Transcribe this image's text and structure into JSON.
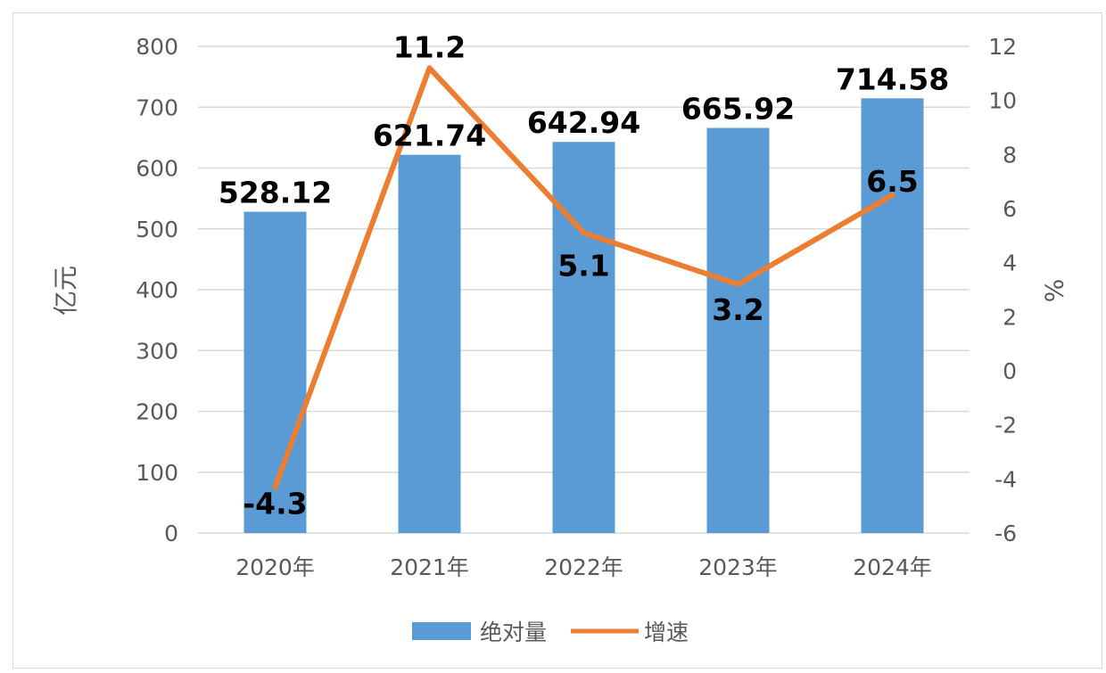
{
  "chart_data": {
    "type": "bar",
    "categories": [
      "2020年",
      "2021年",
      "2022年",
      "2023年",
      "2024年"
    ],
    "series": [
      {
        "name": "绝对量",
        "type": "bar",
        "axis": "left",
        "values": [
          528.12,
          621.74,
          642.94,
          665.92,
          714.58
        ],
        "color": "#5b9bd5"
      },
      {
        "name": "增速",
        "type": "line",
        "axis": "right",
        "values": [
          -4.3,
          11.2,
          5.1,
          3.2,
          6.5
        ],
        "color": "#ed7d31"
      }
    ],
    "left_axis": {
      "label": "亿元",
      "ylim": [
        0,
        800
      ],
      "ticks": [
        "0",
        "100",
        "200",
        "300",
        "400",
        "500",
        "600",
        "700",
        "800"
      ]
    },
    "right_axis": {
      "label": "%",
      "ylim": [
        -6,
        12
      ],
      "ticks": [
        "-6",
        "-4",
        "-2",
        "0",
        "2",
        "4",
        "6",
        "8",
        "10",
        "12"
      ]
    },
    "bar_labels": [
      "528.12",
      "621.74",
      "642.94",
      "665.92",
      "714.58"
    ],
    "line_labels": [
      "-4.3",
      "11.2",
      "5.1",
      "3.2",
      "6.5"
    ],
    "grid": true,
    "legend_position": "bottom"
  }
}
